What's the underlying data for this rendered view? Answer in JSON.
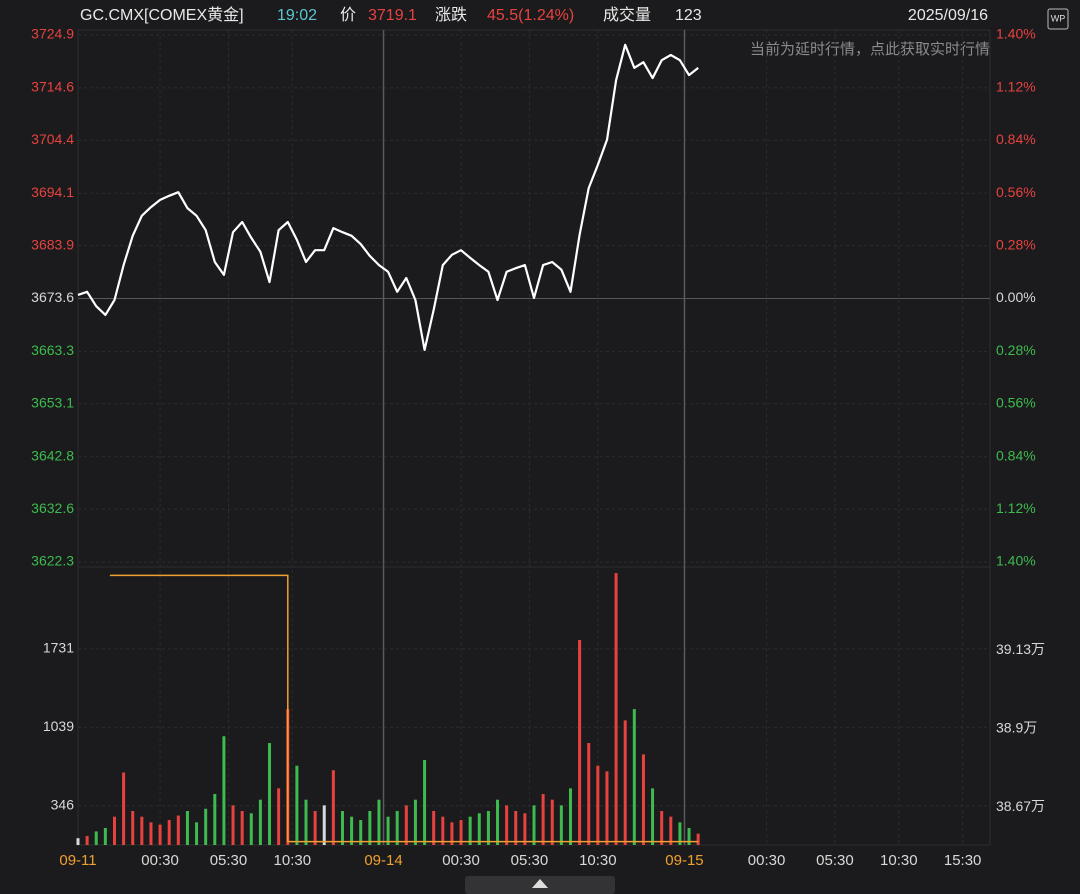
{
  "header": {
    "symbol": "GC.CMX[COMEX黄金]",
    "time": "19:02",
    "price_label": "价",
    "price": "3719.1",
    "change_label": "涨跌",
    "change": "45.5(1.24%)",
    "volume_label": "成交量",
    "volume": "123",
    "date": "2025/09/16",
    "badge": "WP"
  },
  "chart_data": [
    {
      "type": "line",
      "annotation": "当前为延时行情，点此获取实时行情",
      "color": "#ffffff",
      "up_color": "#e8423f",
      "down_color": "#3dbb4e",
      "flat_color": "#d8d8d8",
      "x": [
        0,
        2,
        4,
        6,
        8,
        10,
        12,
        14,
        16,
        18,
        20,
        22,
        24,
        26,
        28,
        30,
        32,
        34,
        36,
        38,
        40,
        42,
        44,
        46,
        48,
        50,
        52,
        54,
        56,
        58,
        60,
        62,
        64,
        66,
        68,
        70,
        72,
        74,
        76,
        78,
        80,
        82,
        84,
        86,
        88,
        90,
        92,
        94,
        96,
        98,
        100,
        102,
        104,
        106,
        108,
        110,
        112,
        114,
        116,
        118,
        120,
        122,
        124,
        126,
        128,
        130,
        132,
        134,
        136
      ],
      "values": [
        3674.3,
        3674.9,
        3672.1,
        3670.4,
        3673.3,
        3680.1,
        3685.8,
        3689.7,
        3691.4,
        3692.8,
        3693.6,
        3694.3,
        3691.2,
        3689.7,
        3686.9,
        3680.7,
        3678.2,
        3686.5,
        3688.5,
        3685.4,
        3682.7,
        3676.8,
        3686.9,
        3688.5,
        3685.0,
        3680.7,
        3683.0,
        3683.0,
        3687.3,
        3686.5,
        3685.8,
        3684.2,
        3681.9,
        3680.1,
        3678.8,
        3674.9,
        3677.6,
        3673.3,
        3663.6,
        3671.4,
        3680.1,
        3682.1,
        3683.0,
        3681.5,
        3680.1,
        3678.8,
        3673.3,
        3678.8,
        3679.5,
        3680.1,
        3673.7,
        3680.1,
        3680.7,
        3679.2,
        3674.9,
        3686.0,
        3695.1,
        3699.6,
        3704.5,
        3716.1,
        3723.0,
        3718.5,
        3719.6,
        3716.5,
        3720.0,
        3721.0,
        3720.0,
        3717.1,
        3718.5
      ],
      "xlim": [
        0,
        200
      ],
      "ylim": [
        3622.3,
        3724.9
      ],
      "yticks": [
        3724.9,
        3714.6,
        3704.4,
        3694.1,
        3683.9,
        3673.6,
        3663.3,
        3653.1,
        3642.8,
        3632.6,
        3622.3
      ],
      "y2lim": [
        -1.4,
        1.4
      ],
      "y2ticks": [
        {
          "value": 1.4,
          "label": "1.40%"
        },
        {
          "value": 1.12,
          "label": "1.12%"
        },
        {
          "value": 0.84,
          "label": "0.84%"
        },
        {
          "value": 0.56,
          "label": "0.56%"
        },
        {
          "value": 0.28,
          "label": "0.28%"
        },
        {
          "value": 0,
          "label": "0.00%"
        },
        {
          "value": -0.28,
          "label": "0.28%"
        },
        {
          "value": -0.56,
          "label": "0.56%"
        },
        {
          "value": -0.84,
          "label": "0.84%"
        },
        {
          "value": -1.12,
          "label": "1.12%"
        },
        {
          "value": -1.4,
          "label": "1.40%"
        }
      ],
      "grid": true
    },
    {
      "type": "bar",
      "x": [
        0,
        2,
        4,
        6,
        8,
        10,
        12,
        14,
        16,
        18,
        20,
        22,
        24,
        26,
        28,
        30,
        32,
        34,
        36,
        38,
        40,
        42,
        44,
        46,
        48,
        50,
        52,
        54,
        56,
        58,
        60,
        62,
        64,
        66,
        68,
        70,
        72,
        74,
        76,
        78,
        80,
        82,
        84,
        86,
        88,
        90,
        92,
        94,
        96,
        98,
        100,
        102,
        104,
        106,
        108,
        110,
        112,
        114,
        116,
        118,
        120,
        122,
        124,
        126,
        128,
        130,
        132,
        134,
        136
      ],
      "values": [
        60,
        80,
        120,
        150,
        250,
        640,
        300,
        250,
        200,
        180,
        220,
        260,
        300,
        200,
        320,
        450,
        960,
        350,
        300,
        280,
        400,
        900,
        500,
        1200,
        700,
        400,
        300,
        350,
        660,
        300,
        250,
        220,
        300,
        400,
        250,
        300,
        350,
        400,
        750,
        300,
        250,
        200,
        220,
        250,
        280,
        300,
        400,
        350,
        300,
        280,
        350,
        450,
        400,
        350,
        500,
        1810,
        900,
        700,
        650,
        2400,
        1100,
        1200,
        800,
        500,
        300,
        250,
        200,
        150,
        100
      ],
      "xlim": [
        0,
        200
      ],
      "ylim": [
        0,
        2410
      ],
      "yticks": [
        346,
        1039,
        1731
      ],
      "xticks": [
        {
          "value": 0,
          "label": "09-11"
        },
        {
          "value": 18,
          "label": "00:30"
        },
        {
          "value": 33,
          "label": "05:30"
        },
        {
          "value": 47,
          "label": "10:30"
        },
        {
          "value": 67,
          "label": "09-14"
        },
        {
          "value": 84,
          "label": "00:30"
        },
        {
          "value": 99,
          "label": "05:30"
        },
        {
          "value": 114,
          "label": "10:30"
        },
        {
          "value": 133,
          "label": "09-15"
        },
        {
          "value": 151,
          "label": "00:30"
        },
        {
          "value": 166,
          "label": "05:30"
        },
        {
          "value": 180,
          "label": "10:30"
        },
        {
          "value": 194,
          "label": "15:30"
        }
      ],
      "y2lim": [
        38.56,
        39.36
      ],
      "y2ticks": [
        {
          "value": 39.13,
          "label": "39.13万"
        },
        {
          "value": 38.9,
          "label": "38.9万"
        },
        {
          "value": 38.67,
          "label": "38.67万"
        }
      ],
      "y2_line": {
        "color": "#f0a030",
        "x": [
          7,
          46,
          46,
          136
        ],
        "values": [
          39.35,
          39.35,
          38.57,
          38.57
        ]
      }
    }
  ]
}
